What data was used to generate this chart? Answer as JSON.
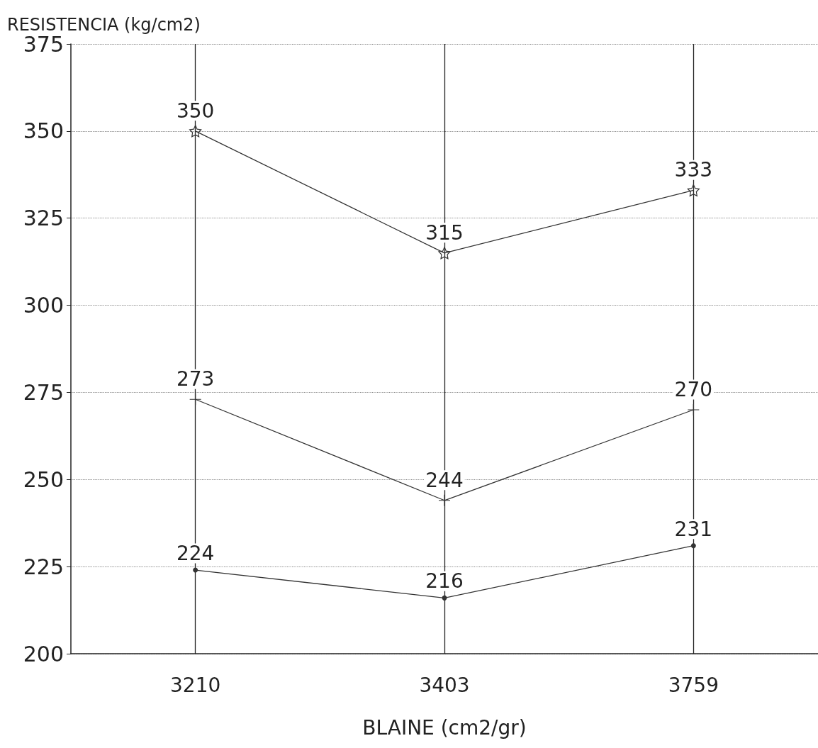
{
  "chart_data": {
    "type": "line",
    "ylabel": "RESISTENCIA (kg/cm2)",
    "xlabel": "BLAINE (cm2/gr)",
    "categories": [
      "3210",
      "3403",
      "3759"
    ],
    "series": [
      {
        "color": "#333333",
        "marker": "star",
        "values": [
          350,
          315,
          333
        ]
      },
      {
        "color": "#333333",
        "marker": "cross",
        "values": [
          273,
          244,
          270
        ]
      },
      {
        "color": "#333333",
        "marker": "circle",
        "values": [
          224,
          216,
          231
        ]
      }
    ],
    "ylim": [
      200,
      375
    ],
    "yticks": [
      200,
      225,
      250,
      275,
      300,
      325,
      350,
      375
    ],
    "grid": true,
    "data_labels": true,
    "line_style": "solid"
  }
}
